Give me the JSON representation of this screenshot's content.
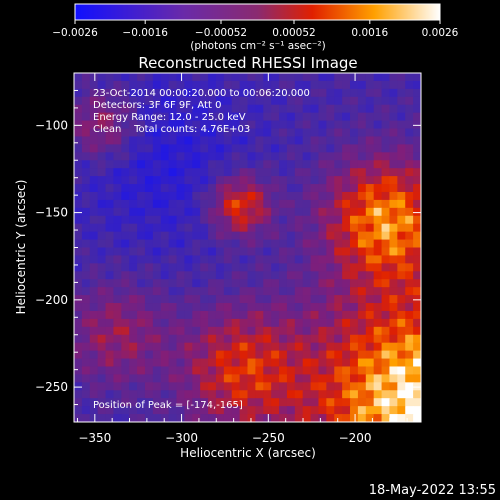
{
  "chart_data": {
    "type": "heatmap",
    "title": "Reconstructed RHESSI Image",
    "xlabel": "Heliocentric X (arcsec)",
    "ylabel": "Heliocentric Y (arcsec)",
    "xlim": [
      -362,
      -162
    ],
    "ylim": [
      -270,
      -70
    ],
    "x_ticks": [
      -350,
      -300,
      -250,
      -200
    ],
    "x_tick_labels": [
      "−350",
      "−300",
      "−250",
      "−200"
    ],
    "y_ticks": [
      -100,
      -150,
      -200,
      -250
    ],
    "y_tick_labels": [
      "−100",
      "−150",
      "−200",
      "−250"
    ],
    "colorbar": {
      "range": [
        -0.0026,
        0.0026
      ],
      "ticks": [
        -0.0026,
        -0.0016,
        -0.00052,
        0.00052,
        0.0016,
        0.0026
      ],
      "tick_labels": [
        "−0.0026",
        "−0.0016",
        "−0.00052",
        "0.00052",
        "0.0016",
        "0.0026"
      ],
      "unit_label": "(photons cm⁻² s⁻¹ asec⁻²)",
      "colors": [
        "#1010ff",
        "#7a2aa0",
        "#e02000",
        "#ffb000",
        "#ffffff"
      ]
    },
    "peak": {
      "x": -174,
      "y": -165
    },
    "grid": false,
    "annotations": {
      "time_range": "23-Oct-2014 00:00:20.000 to 00:06:20.000",
      "detectors": "Detectors: 3F 6F 9F, Att 0",
      "energy": "Energy Range: 12.0 - 25.0 keV",
      "clean": "Clean    Total counts: 4.76E+03",
      "peak_label": "Position of Peak = [-174,-165]"
    }
  },
  "footer": {
    "timestamp": "18-May-2022 13:55"
  }
}
